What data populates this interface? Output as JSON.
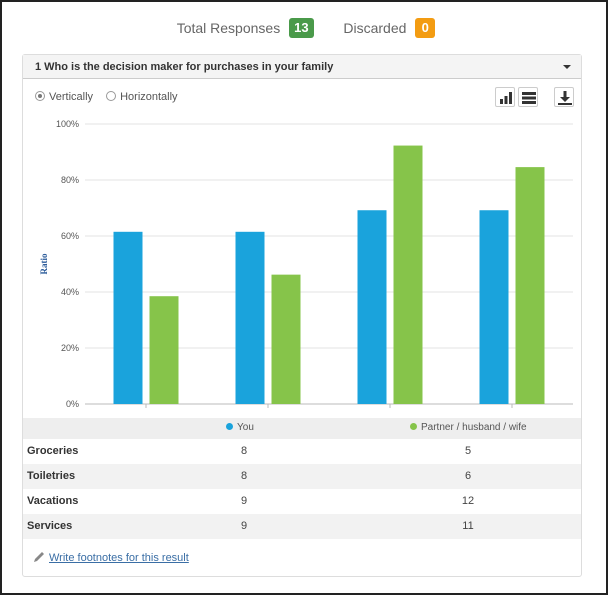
{
  "summary": {
    "total_label": "Total Responses",
    "total_value": "13",
    "discarded_label": "Discarded",
    "discarded_value": "0",
    "total_color": "#4a9a4a",
    "discarded_color": "#f39c12"
  },
  "question": {
    "title": "1 Who is the decision maker for purchases in your family"
  },
  "orientation": {
    "vertical_label": "Vertically",
    "horizontal_label": "Horizontally",
    "selected": "Vertically"
  },
  "toolbar": {
    "icons": [
      "bar-chart-icon",
      "table-view-icon",
      "download-icon"
    ]
  },
  "chart_data": {
    "type": "bar",
    "categories": [
      "Groceries",
      "Toiletries",
      "Vacations",
      "Services"
    ],
    "series": [
      {
        "name": "You",
        "values": [
          8,
          8,
          9,
          9
        ],
        "ratio": [
          61.5,
          61.5,
          69.2,
          69.2
        ],
        "color": "#1aa3dc"
      },
      {
        "name": "Partner / husband / wife",
        "values": [
          5,
          6,
          12,
          11
        ],
        "ratio": [
          38.5,
          46.2,
          92.3,
          84.6
        ],
        "color": "#86c44a"
      }
    ],
    "ylabel": "Ratio",
    "ylim": [
      0,
      100
    ],
    "yticks": [
      "0%",
      "20%",
      "40%",
      "60%",
      "80%",
      "100%"
    ],
    "grid": true
  },
  "table": {
    "rows": [
      {
        "category": "Groceries",
        "you": "8",
        "partner": "5"
      },
      {
        "category": "Toiletries",
        "you": "8",
        "partner": "6"
      },
      {
        "category": "Vacations",
        "you": "9",
        "partner": "12"
      },
      {
        "category": "Services",
        "you": "9",
        "partner": "11"
      }
    ]
  },
  "footnote": {
    "link_text": "Write footnotes for this result"
  }
}
